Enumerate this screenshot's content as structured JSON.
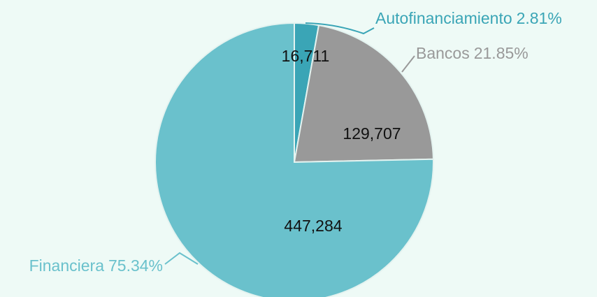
{
  "chart_data": {
    "type": "pie",
    "categories": [
      "Autofinanciamiento",
      "Bancos",
      "Financiera"
    ],
    "values": [
      16711,
      129707,
      447284
    ],
    "value_labels": [
      "16,711",
      "129,707",
      "447,284"
    ],
    "percent_labels": [
      "2.81%",
      "21.85%",
      "75.34%"
    ],
    "colors": [
      "#3aa5b6",
      "#999999",
      "#6ac1cc"
    ],
    "label_colors": [
      "#3aa5b6",
      "#999999",
      "#6ac1cc"
    ]
  }
}
